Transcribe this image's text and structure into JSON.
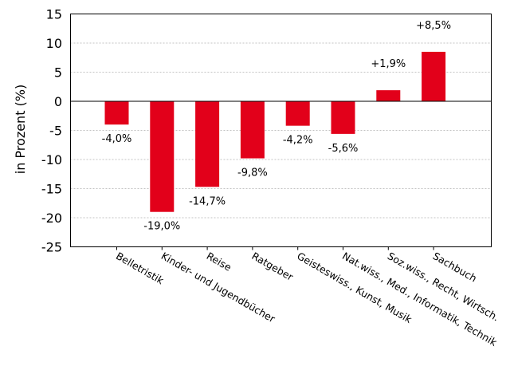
{
  "chart_data": {
    "type": "bar",
    "title": "",
    "xlabel": "",
    "ylabel": "in Prozent (%)",
    "ylim": [
      -25,
      15
    ],
    "yticks": [
      15,
      10,
      5,
      0,
      -5,
      -10,
      -15,
      -20,
      -25
    ],
    "grid": true,
    "bar_color": "#e2001a",
    "categories": [
      "Belletristik",
      "Kinder- und Jugendbücher",
      "Reise",
      "Ratgeber",
      "Geisteswiss., Kunst, Musik",
      "Nat.wiss., Med., Informatik, Technik",
      "Soz.wiss., Recht, Wirtsch.",
      "Sachbuch"
    ],
    "values": [
      -4.0,
      -19.0,
      -14.7,
      -9.8,
      -4.2,
      -5.6,
      1.9,
      8.5
    ],
    "data_labels": [
      "-4,0%",
      "-19,0%",
      "-14,7%",
      "-9,8%",
      "-4,2%",
      "-5,6%",
      "+1,9%",
      "+8,5%"
    ]
  }
}
